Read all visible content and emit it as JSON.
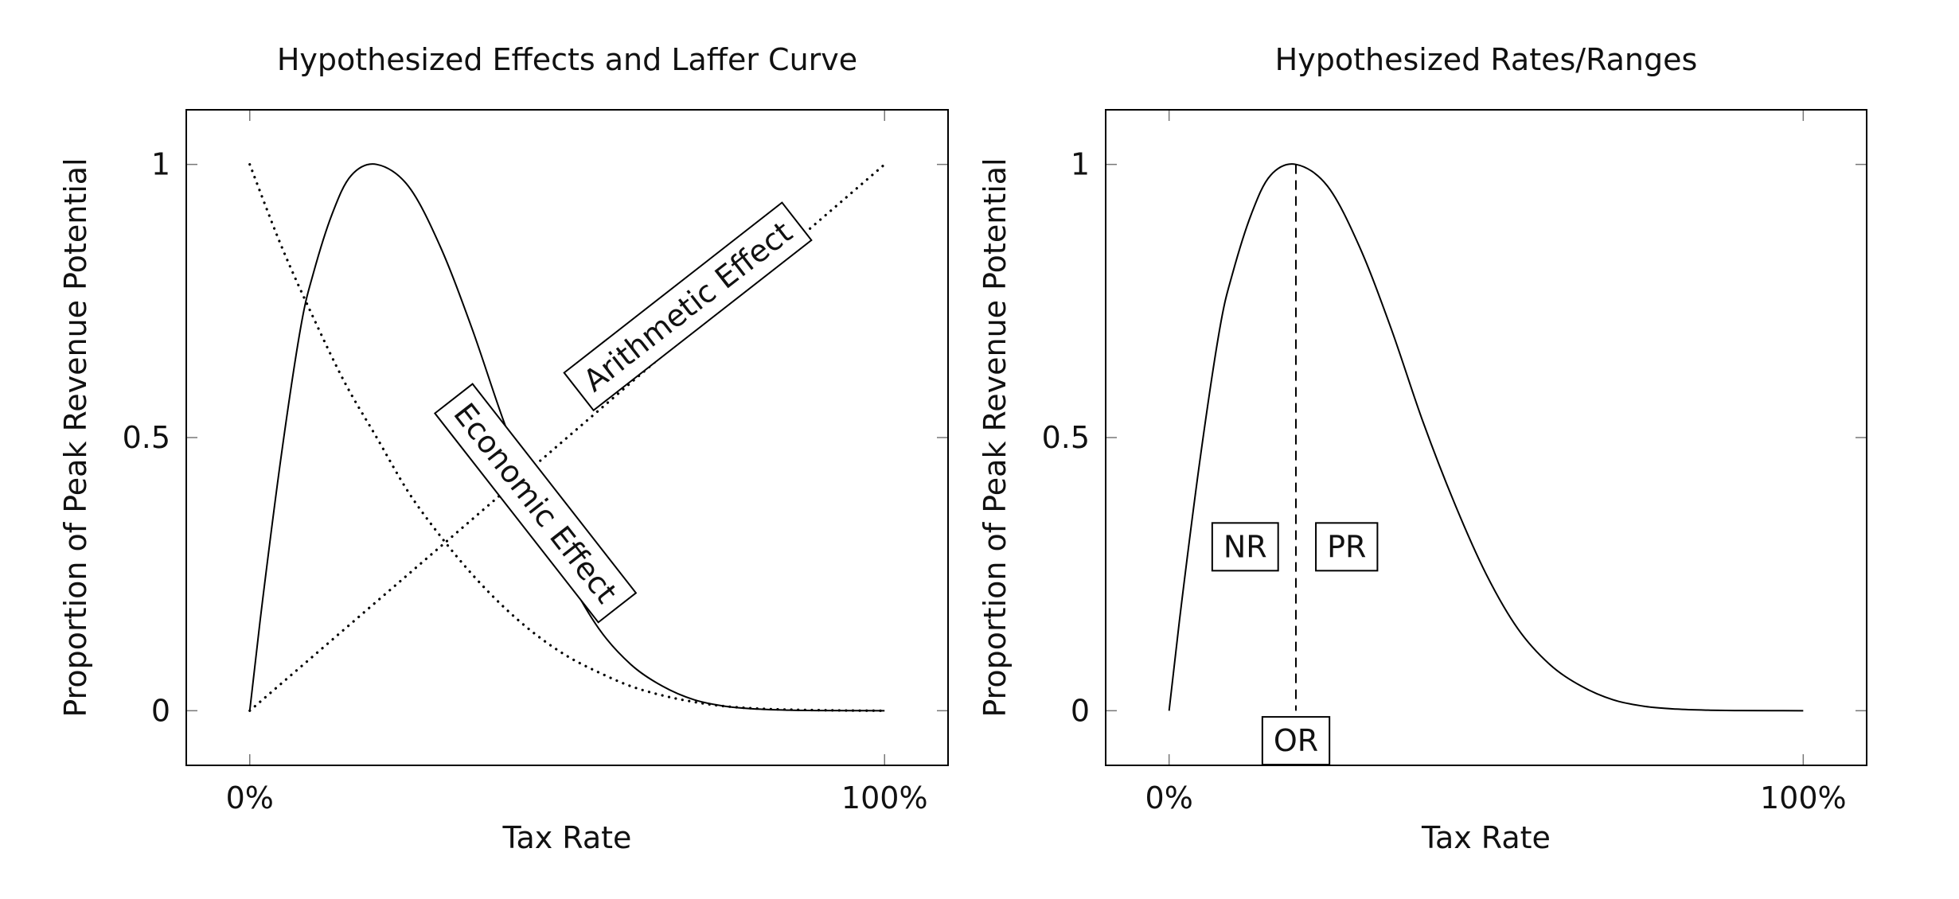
{
  "chart_data": [
    {
      "type": "line",
      "title": "Hypothesized Effects and Laffer Curve",
      "xlabel": "Tax Rate",
      "ylabel": "Proportion of Peak Revenue Potential",
      "xlim": [
        -0.1,
        1.1
      ],
      "ylim": [
        -0.1,
        1.1
      ],
      "x_ticks": [
        0,
        1
      ],
      "x_tick_labels": [
        "0%",
        "100%"
      ],
      "y_ticks": [
        0,
        0.5,
        1
      ],
      "y_tick_labels": [
        "0",
        "0.5",
        "1"
      ],
      "grid": false,
      "series": [
        {
          "style": "solid",
          "x": [
            0,
            0.02,
            0.05,
            0.08,
            0.1,
            0.13,
            0.16,
            0.2,
            0.25,
            0.3,
            0.35,
            0.4,
            0.45,
            0.5,
            0.55,
            0.6,
            0.65,
            0.7,
            0.75,
            0.8,
            0.85,
            0.9,
            0.95,
            1
          ],
          "values": [
            0,
            0.2,
            0.47,
            0.7,
            0.8,
            0.91,
            0.98,
            1.0,
            0.96,
            0.85,
            0.7,
            0.53,
            0.38,
            0.25,
            0.15,
            0.085,
            0.045,
            0.02,
            0.008,
            0.003,
            0.001,
            0.0003,
            0.0001,
            0
          ]
        },
        {
          "name": "Economic Effect",
          "style": "dotted",
          "x": [
            0,
            0.05,
            0.1,
            0.15,
            0.2,
            0.25,
            0.3,
            0.35,
            0.4,
            0.45,
            0.5,
            0.55,
            0.6,
            0.65,
            0.7,
            0.75,
            0.8,
            0.85,
            0.9,
            0.95,
            1
          ],
          "values": [
            1.0,
            0.85,
            0.72,
            0.6,
            0.5,
            0.4,
            0.32,
            0.25,
            0.19,
            0.14,
            0.1,
            0.07,
            0.045,
            0.028,
            0.016,
            0.008,
            0.004,
            0.002,
            0.001,
            0.0003,
            0
          ]
        },
        {
          "name": "Arithmetic Effect",
          "style": "dotted",
          "x": [
            0,
            1
          ],
          "values": [
            0,
            1
          ]
        }
      ],
      "annotations": [
        {
          "text": "Economic Effect",
          "x": 0.45,
          "y": 0.38,
          "rotation": 52
        },
        {
          "text": "Arithmetic Effect",
          "x": 0.69,
          "y": 0.74,
          "rotation": -38
        }
      ]
    },
    {
      "type": "line",
      "title": "Hypothesized Rates/Ranges",
      "xlabel": "Tax Rate",
      "ylabel": "Proportion of Peak Revenue Potential",
      "xlim": [
        -0.1,
        1.1
      ],
      "ylim": [
        -0.1,
        1.1
      ],
      "x_ticks": [
        0,
        1
      ],
      "x_tick_labels": [
        "0%",
        "100%"
      ],
      "y_ticks": [
        0,
        0.5,
        1
      ],
      "y_tick_labels": [
        "0",
        "0.5",
        "1"
      ],
      "grid": false,
      "series": [
        {
          "style": "solid",
          "x": [
            0,
            0.02,
            0.05,
            0.08,
            0.1,
            0.13,
            0.16,
            0.2,
            0.25,
            0.3,
            0.35,
            0.4,
            0.45,
            0.5,
            0.55,
            0.6,
            0.65,
            0.7,
            0.75,
            0.8,
            0.85,
            0.9,
            0.95,
            1
          ],
          "values": [
            0,
            0.2,
            0.47,
            0.7,
            0.8,
            0.91,
            0.98,
            1.0,
            0.96,
            0.85,
            0.7,
            0.53,
            0.38,
            0.25,
            0.15,
            0.085,
            0.045,
            0.02,
            0.008,
            0.003,
            0.001,
            0.0003,
            0.0001,
            0
          ]
        }
      ],
      "vline": {
        "x": 0.2,
        "from": 0,
        "to": 1,
        "style": "dashed"
      },
      "annotations": [
        {
          "text": "NR",
          "x": 0.12,
          "y": 0.3
        },
        {
          "text": "PR",
          "x": 0.28,
          "y": 0.3
        },
        {
          "text": "OR",
          "x": 0.2,
          "y": -0.055
        }
      ]
    }
  ]
}
